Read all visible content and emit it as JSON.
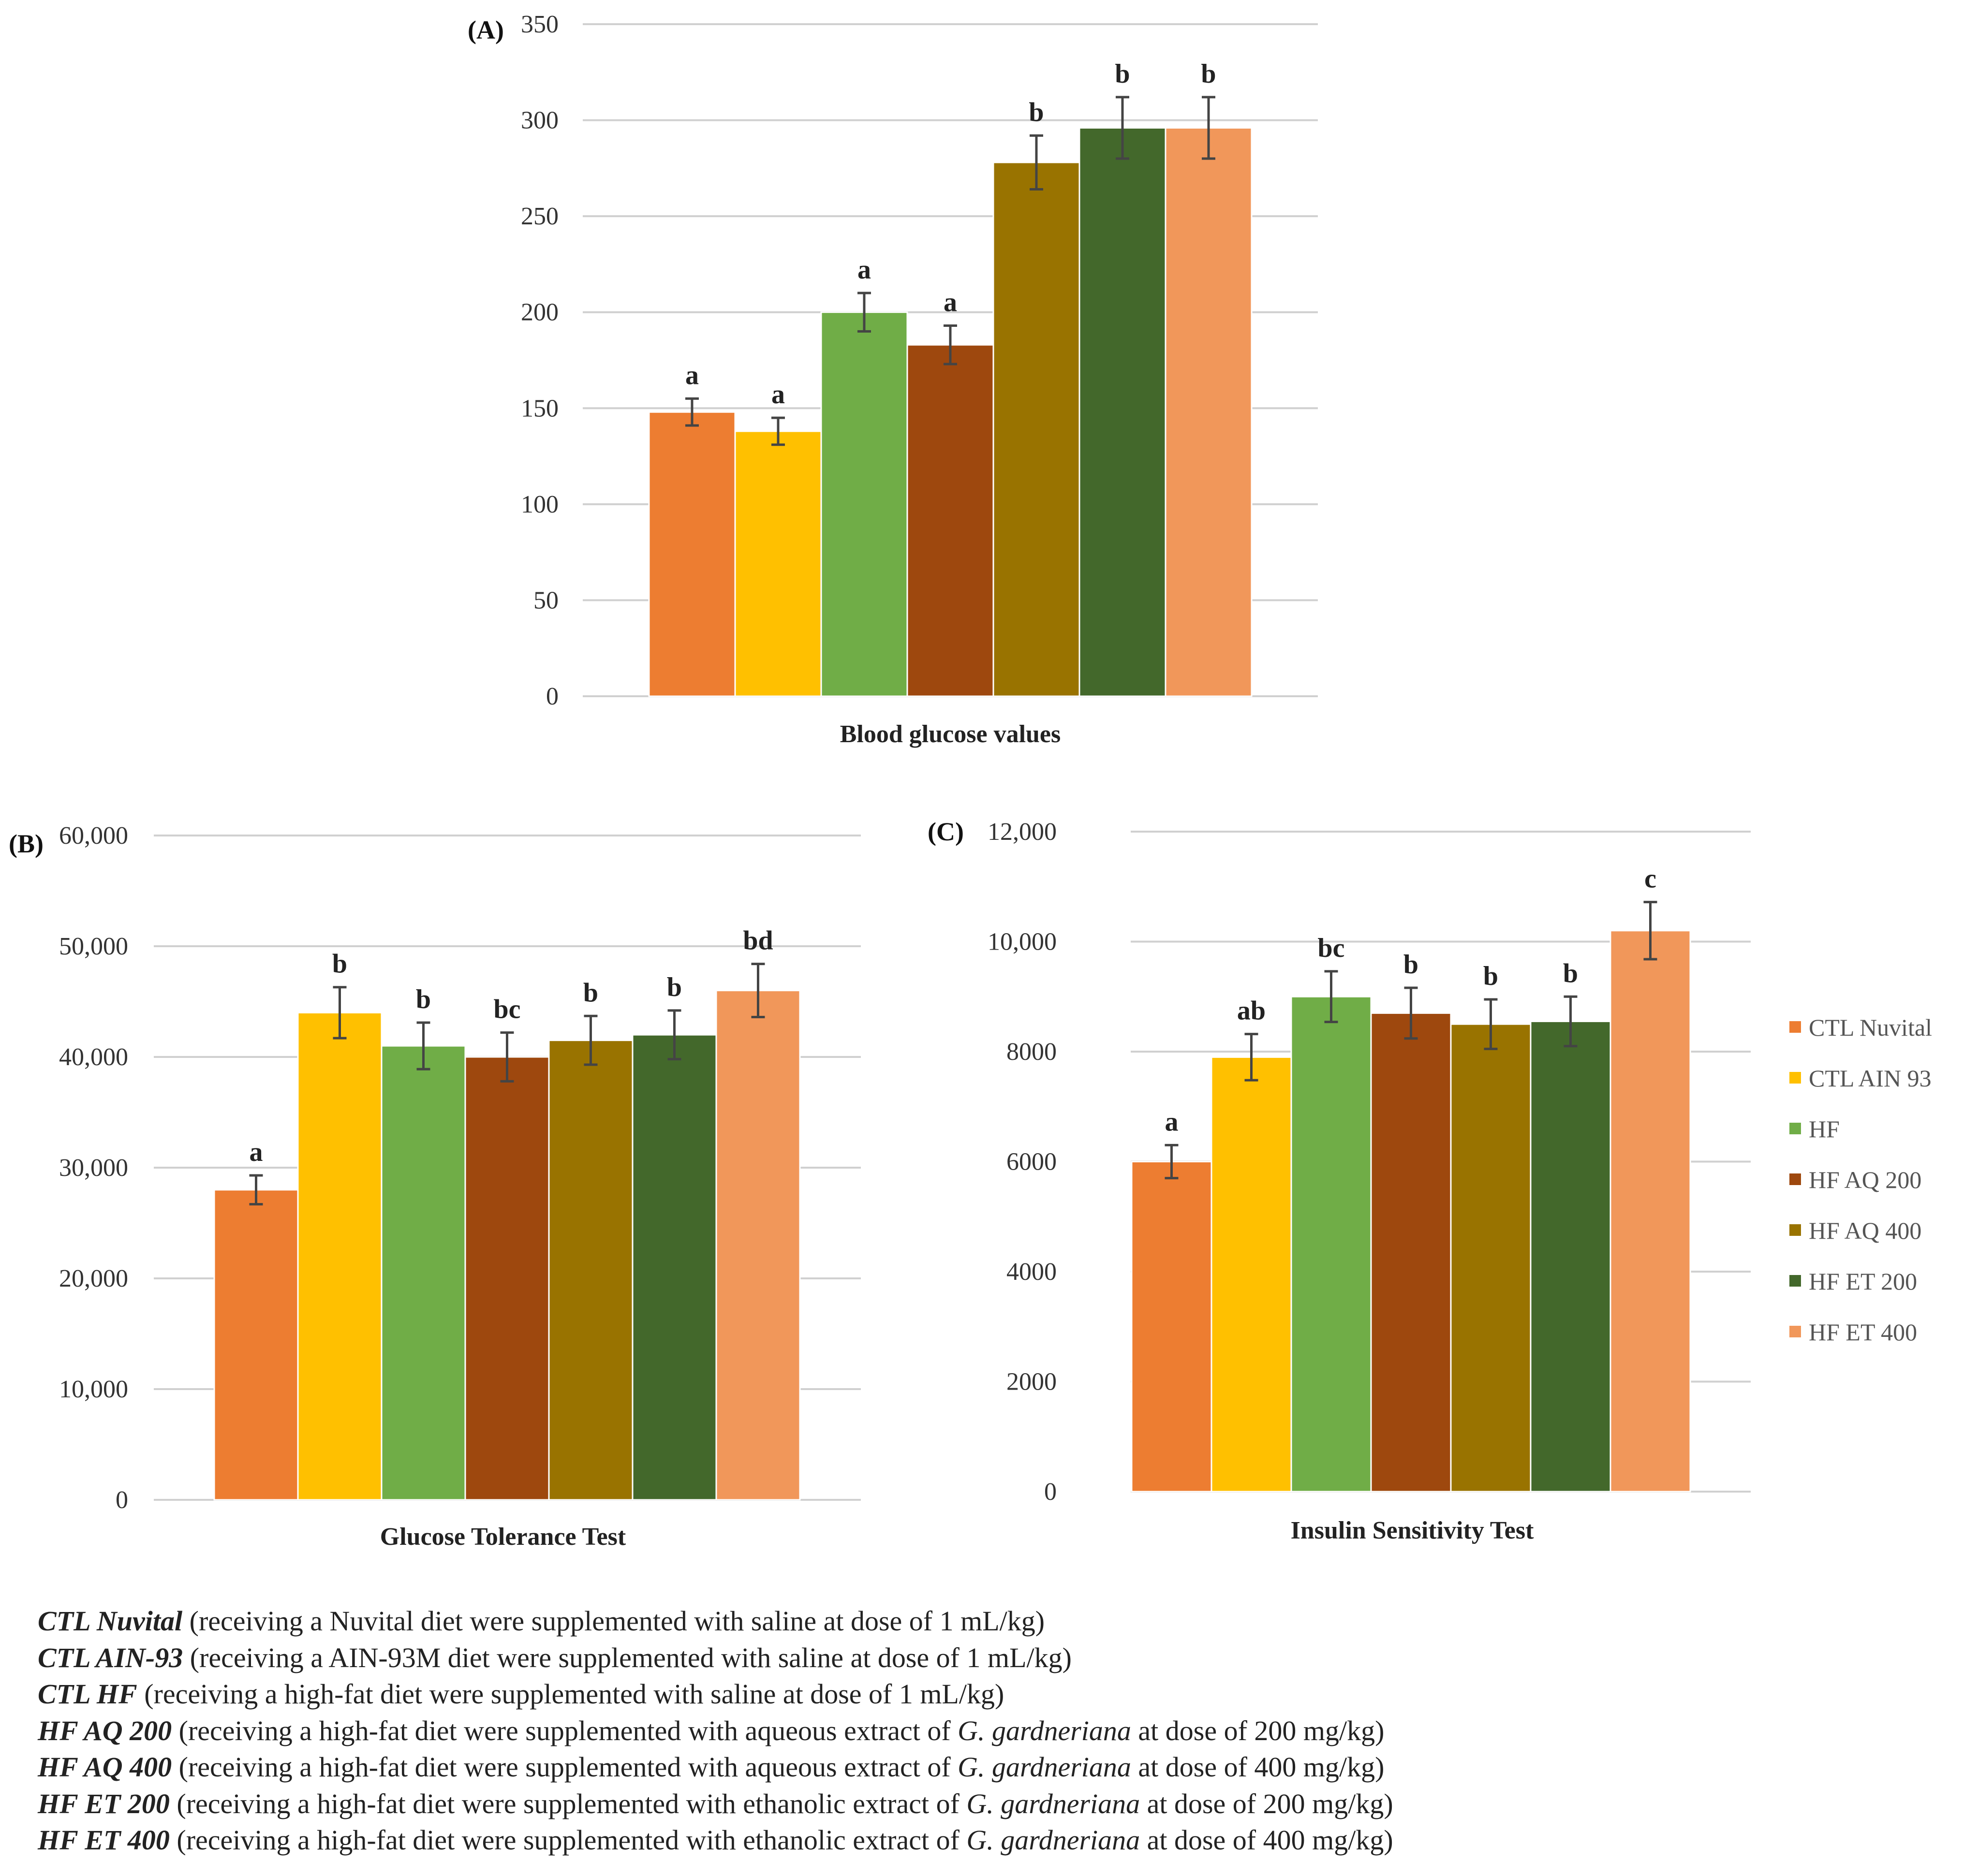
{
  "colors": {
    "CTL Nuvital": "#ED7D31",
    "CTL AIN 93": "#FFC000",
    "HF": "#70AD47",
    "HF AQ 200": "#9E480E",
    "HF AQ 400": "#997300",
    "HF ET 200": "#43682B",
    "HF ET 400": "#F1975A"
  },
  "chart_data": [
    {
      "id": "A",
      "type": "bar",
      "panel_label": "(A)",
      "xlabel": "Blood glucose values",
      "series": [
        {
          "name": "CTL Nuvital",
          "value": 148,
          "error": 7,
          "letter": "a"
        },
        {
          "name": "CTL AIN 93",
          "value": 138,
          "error": 7,
          "letter": "a"
        },
        {
          "name": "HF",
          "value": 200,
          "error": 10,
          "letter": "a"
        },
        {
          "name": "HF AQ 200",
          "value": 183,
          "error": 10,
          "letter": "a"
        },
        {
          "name": "HF AQ 400",
          "value": 278,
          "error": 14,
          "letter": "b"
        },
        {
          "name": "HF ET 200",
          "value": 296,
          "error": 16,
          "letter": "b"
        },
        {
          "name": "HF ET 400",
          "value": 296,
          "error": 16,
          "letter": "b"
        }
      ],
      "ylim": [
        0,
        350
      ],
      "yticks": [
        0,
        50,
        100,
        150,
        200,
        250,
        300,
        350
      ],
      "ytick_labels": [
        "0",
        "50",
        "100",
        "150",
        "200",
        "250",
        "300",
        "350"
      ],
      "grid": true
    },
    {
      "id": "B",
      "type": "bar",
      "panel_label": "(B)",
      "xlabel": "Glucose Tolerance Test",
      "series": [
        {
          "name": "CTL Nuvital",
          "value": 28000,
          "error": 1300,
          "letter": "a"
        },
        {
          "name": "CTL AIN 93",
          "value": 44000,
          "error": 2300,
          "letter": "b"
        },
        {
          "name": "HF",
          "value": 41000,
          "error": 2100,
          "letter": "b"
        },
        {
          "name": "HF AQ 200",
          "value": 40000,
          "error": 2200,
          "letter": "bc"
        },
        {
          "name": "HF AQ 400",
          "value": 41500,
          "error": 2200,
          "letter": "b"
        },
        {
          "name": "HF ET 200",
          "value": 42000,
          "error": 2200,
          "letter": "b"
        },
        {
          "name": "HF ET 400",
          "value": 46000,
          "error": 2400,
          "letter": "bd"
        }
      ],
      "ylim": [
        0,
        60000
      ],
      "yticks": [
        0,
        10000,
        20000,
        30000,
        40000,
        50000,
        60000
      ],
      "ytick_labels": [
        "0",
        "10,000",
        "20,000",
        "30,000",
        "40,000",
        "50,000",
        "60,000"
      ],
      "grid": true
    },
    {
      "id": "C",
      "type": "bar",
      "panel_label": "(C)",
      "xlabel": "Insulin Sensitivity Test",
      "series": [
        {
          "name": "CTL Nuvital",
          "value": 6000,
          "error": 300,
          "letter": "a"
        },
        {
          "name": "CTL AIN 93",
          "value": 7900,
          "error": 420,
          "letter": "ab"
        },
        {
          "name": "HF",
          "value": 9000,
          "error": 460,
          "letter": "bc"
        },
        {
          "name": "HF AQ 200",
          "value": 8700,
          "error": 460,
          "letter": "b"
        },
        {
          "name": "HF AQ 400",
          "value": 8500,
          "error": 450,
          "letter": "b"
        },
        {
          "name": "HF ET 200",
          "value": 8550,
          "error": 450,
          "letter": "b"
        },
        {
          "name": "HF ET 400",
          "value": 10200,
          "error": 520,
          "letter": "c"
        }
      ],
      "ylim": [
        0,
        12000
      ],
      "yticks": [
        0,
        2000,
        4000,
        6000,
        8000,
        10000,
        12000
      ],
      "ytick_labels": [
        "0",
        "2000",
        "4000",
        "6000",
        "8000",
        "10,000",
        "12,000"
      ],
      "grid": true
    }
  ],
  "legend": {
    "placement": "right of panel C",
    "entries": [
      "CTL Nuvital",
      "CTL AIN 93",
      "HF",
      "HF AQ 200",
      "HF AQ 400",
      "HF ET 200",
      "HF ET 400"
    ]
  },
  "caption": [
    {
      "term": "CTL Nuvital",
      "text": " (receiving a Nuvital diet were supplemented with saline at dose of 1 mL/kg)"
    },
    {
      "term": "CTL AIN-93",
      "text": " (receiving a AIN-93M diet were supplemented with saline at dose of 1 mL/kg)"
    },
    {
      "term": "CTL HF",
      "text": " (receiving a high-fat diet were supplemented with saline at dose of 1 mL/kg)"
    },
    {
      "term": "HF AQ 200",
      "text": " (receiving a high-fat diet were supplemented with aqueous extract of ",
      "species": "G. gardneriana",
      "tail": " at dose of 200 mg/kg)"
    },
    {
      "term": "HF AQ 400",
      "text": " (receiving a high-fat diet were supplemented with aqueous extract of ",
      "species": "G. gardneriana",
      "tail": " at dose of 400 mg/kg)"
    },
    {
      "term": "HF ET 200",
      "text": " (receiving a high-fat diet were supplemented with ethanolic extract of ",
      "species": "G. gardneriana",
      "tail": " at dose of 200 mg/kg)"
    },
    {
      "term": "HF ET 400",
      "text": " (receiving a high-fat diet were supplemented with ethanolic extract of ",
      "species": "G. gardneriana",
      "tail": " at dose of 400 mg/kg)"
    }
  ]
}
